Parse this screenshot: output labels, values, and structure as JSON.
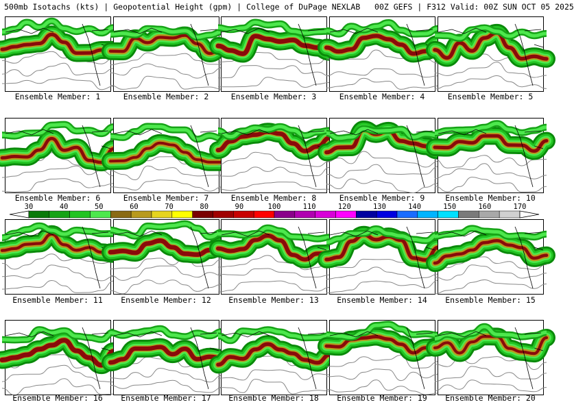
{
  "header": {
    "title": "500mb Isotachs (kts) | Geopotential Height (gpm) | College of DuPage NEXLAB   00Z GEFS | F312 Valid: 00Z SUN OCT 05 2025"
  },
  "panels": [
    {
      "label": "Ensemble Member: 1"
    },
    {
      "label": "Ensemble Member: 2"
    },
    {
      "label": "Ensemble Member: 3"
    },
    {
      "label": "Ensemble Member: 4"
    },
    {
      "label": "Ensemble Member: 5"
    },
    {
      "label": "Ensemble Member: 6"
    },
    {
      "label": "Ensemble Member: 7"
    },
    {
      "label": "Ensemble Member: 8"
    },
    {
      "label": "Ensemble Member: 9"
    },
    {
      "label": "Ensemble Member: 10"
    },
    {
      "label": "Ensemble Member: 11"
    },
    {
      "label": "Ensemble Member: 12"
    },
    {
      "label": "Ensemble Member: 13"
    },
    {
      "label": "Ensemble Member: 14"
    },
    {
      "label": "Ensemble Member: 15"
    },
    {
      "label": "Ensemble Member: 16"
    },
    {
      "label": "Ensemble Member: 17"
    },
    {
      "label": "Ensemble Member: 18"
    },
    {
      "label": "Ensemble Member: 19"
    },
    {
      "label": "Ensemble Member: 20"
    }
  ],
  "colorbar": {
    "ticks": [
      "30",
      "40",
      "50",
      "60",
      "70",
      "80",
      "90",
      "100",
      "110",
      "120",
      "130",
      "140",
      "150",
      "160",
      "170"
    ],
    "colors": [
      "#0a7a0a",
      "#16a316",
      "#22c422",
      "#4de84d",
      "#8a6a14",
      "#b89a1e",
      "#e6d41e",
      "#ffff00",
      "#7a0000",
      "#a00000",
      "#c80000",
      "#ff0000",
      "#8a008a",
      "#b000b0",
      "#d800d8",
      "#ff00ff",
      "#0000a0",
      "#0000e0",
      "#1a6cff",
      "#00b4ff",
      "#00e0ff",
      "#7a7a7a",
      "#a8a8a8",
      "#d0d0d0"
    ]
  }
}
